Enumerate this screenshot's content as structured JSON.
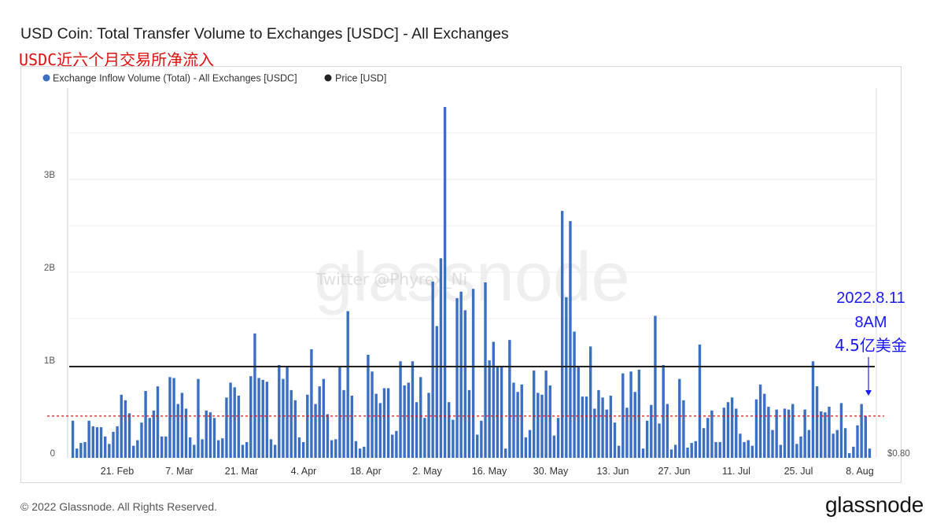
{
  "title": "USD Coin: Total Transfer Volume to Exchanges [USDC] - All Exchanges",
  "subtitle": "USDC近六个月交易所净流入",
  "watermark": "glassnode",
  "watermark_handle": "Twitter @Phyrex_Ni",
  "annotation": {
    "lines": [
      "2022.8.11",
      "8AM",
      "4.5亿美金"
    ],
    "color": "#1a1aff"
  },
  "footer": {
    "copyright": "© 2022 Glassnode. All Rights Reserved.",
    "logo": "glassnode"
  },
  "colors": {
    "bars": "#3a6fc4",
    "price": "#222222",
    "reference_line": "#e01010"
  },
  "chart_data": {
    "type": "bar",
    "legend": [
      {
        "name": "Exchange Inflow Volume (Total) - All Exchanges [USDC]",
        "color": "#3a6fc4"
      },
      {
        "name": "Price [USD]",
        "color": "#222222"
      }
    ],
    "legend_position": "top-left",
    "grid": true,
    "x_tick_labels": [
      "21. Feb",
      "7. Mar",
      "21. Mar",
      "4. Apr",
      "18. Apr",
      "2. May",
      "16. May",
      "30. May",
      "13. Jun",
      "27. Jun",
      "11. Jul",
      "25. Jul",
      "8. Aug"
    ],
    "y_tick_labels": [
      "0",
      "1B",
      "2B",
      "3B"
    ],
    "y_right_tick_labels": [
      "$0.80"
    ],
    "ylim": [
      0,
      3.8
    ],
    "y_unit": "B USDC",
    "price_level_usd": 1.0,
    "reference_line_value": 0.45,
    "date_range": [
      "2022-02-11",
      "2022-08-11"
    ],
    "values": [
      0.4,
      0.1,
      0.16,
      0.17,
      0.4,
      0.34,
      0.33,
      0.33,
      0.23,
      0.15,
      0.28,
      0.34,
      0.68,
      0.62,
      0.48,
      0.13,
      0.19,
      0.38,
      0.72,
      0.43,
      0.51,
      0.77,
      0.23,
      0.23,
      0.87,
      0.86,
      0.58,
      0.7,
      0.53,
      0.22,
      0.14,
      0.85,
      0.2,
      0.51,
      0.49,
      0.43,
      0.19,
      0.21,
      0.65,
      0.81,
      0.76,
      0.67,
      0.14,
      0.17,
      0.88,
      1.34,
      0.86,
      0.84,
      0.82,
      0.2,
      0.14,
      1.0,
      0.85,
      0.99,
      0.73,
      0.62,
      0.22,
      0.17,
      0.68,
      1.17,
      0.58,
      0.77,
      0.85,
      0.47,
      0.19,
      0.2,
      0.99,
      0.73,
      1.58,
      0.67,
      0.18,
      0.1,
      0.12,
      1.11,
      0.93,
      0.69,
      0.59,
      0.75,
      0.75,
      0.25,
      0.29,
      1.04,
      0.78,
      0.81,
      1.04,
      0.6,
      0.87,
      0.43,
      0.7,
      1.9,
      1.42,
      2.15,
      3.78,
      0.6,
      0.41,
      1.72,
      1.79,
      1.59,
      0.73,
      1.82,
      0.25,
      0.4,
      1.89,
      1.05,
      1.25,
      0.99,
      0.99,
      0.1,
      1.27,
      0.81,
      0.71,
      0.79,
      0.22,
      0.3,
      0.94,
      0.7,
      0.68,
      0.94,
      0.78,
      0.24,
      0.43,
      2.66,
      1.73,
      2.55,
      1.36,
      0.98,
      0.66,
      0.66,
      1.2,
      0.53,
      0.73,
      0.65,
      0.52,
      0.67,
      0.38,
      0.13,
      0.91,
      0.54,
      0.93,
      0.71,
      0.95,
      0.1,
      0.4,
      0.57,
      1.53,
      0.37,
      1.0,
      0.58,
      0.09,
      0.14,
      0.85,
      0.62,
      0.11,
      0.16,
      0.18,
      1.22,
      0.32,
      0.43,
      0.51,
      0.17,
      0.17,
      0.54,
      0.6,
      0.65,
      0.53,
      0.26,
      0.17,
      0.19,
      0.13,
      0.63,
      0.79,
      0.69,
      0.55,
      0.3,
      0.52,
      0.14,
      0.53,
      0.52,
      0.58,
      0.15,
      0.23,
      0.52,
      0.3,
      1.04,
      0.77,
      0.5,
      0.49,
      0.55,
      0.26,
      0.3,
      0.59,
      0.32,
      0.05,
      0.12,
      0.35,
      0.58,
      0.45,
      0.1
    ]
  }
}
